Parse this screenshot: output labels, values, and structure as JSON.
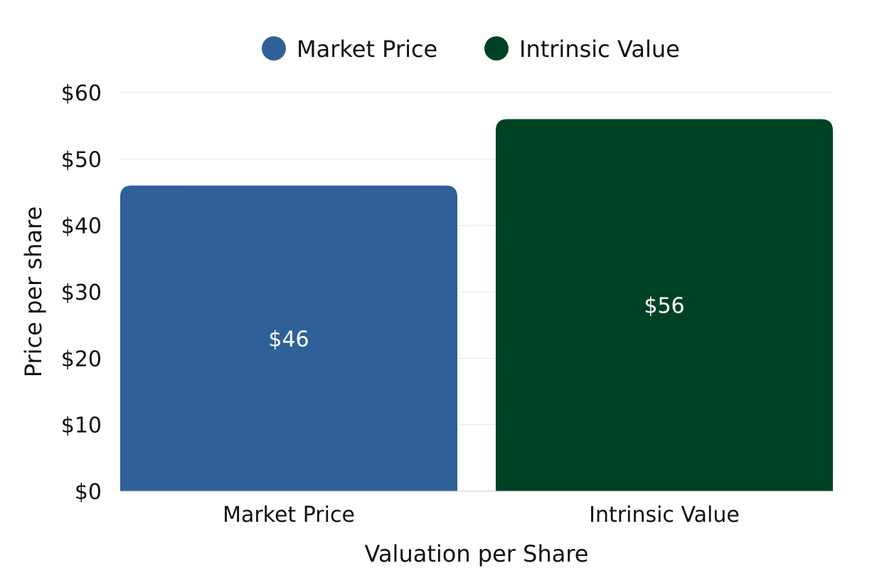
{
  "chart_data": {
    "type": "bar",
    "title": "",
    "xlabel": "Valuation per Share",
    "ylabel": "Price per share",
    "categories": [
      "Market Price",
      "Intrinsic Value"
    ],
    "values": [
      46,
      56
    ],
    "data_labels": [
      "$46",
      "$56"
    ],
    "colors": [
      "#2f6098",
      "#004225"
    ],
    "ylim": [
      0,
      60
    ],
    "yticks": [
      0,
      10,
      20,
      30,
      40,
      50,
      60
    ],
    "ytick_labels": [
      "$0",
      "$10",
      "$20",
      "$30",
      "$40",
      "$50",
      "$60"
    ],
    "grid": true,
    "legend": {
      "placement": "top",
      "entries": [
        {
          "label": "Market Price",
          "color": "#2f6098"
        },
        {
          "label": "Intrinsic Value",
          "color": "#004225"
        }
      ]
    }
  }
}
